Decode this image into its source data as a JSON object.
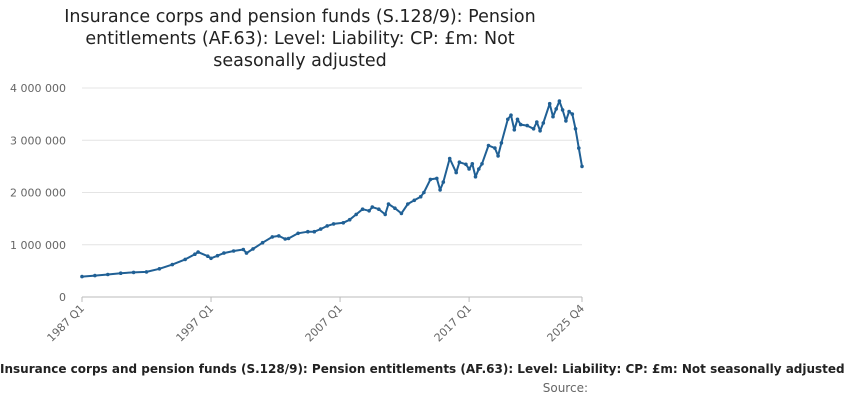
{
  "chart_data": {
    "type": "line",
    "title": "Insurance corps and pension funds (S.128/9): Pension entitlements (AF.63): Level: Liability: CP: £m: Not seasonally adjusted",
    "xlabel": "",
    "ylabel": "",
    "ylim": [
      0,
      4000000
    ],
    "y_ticks": [
      "0",
      "1 000 000",
      "2 000 000",
      "3 000 000",
      "4 000 000"
    ],
    "y_tick_values": [
      0,
      1000000,
      2000000,
      3000000,
      4000000
    ],
    "x_ticks": [
      "1987 Q1",
      "1997 Q1",
      "2007 Q1",
      "2017 Q1",
      "2025 Q4"
    ],
    "x_tick_values": [
      1987.0,
      1997.0,
      2007.0,
      2017.0,
      2025.75
    ],
    "grid": true,
    "series_color": "#206095",
    "series": [
      {
        "name": "Insurance corps and pension funds (S.128/9): Pension entitlements (AF.63): Level: Liability: CP: £m: Not seasonally adjusted",
        "points": [
          [
            1987.0,
            390000
          ],
          [
            1988.0,
            410000
          ],
          [
            1989.0,
            430000
          ],
          [
            1990.0,
            455000
          ],
          [
            1991.0,
            470000
          ],
          [
            1992.0,
            480000
          ],
          [
            1993.0,
            540000
          ],
          [
            1994.0,
            620000
          ],
          [
            1995.0,
            720000
          ],
          [
            1995.75,
            820000
          ],
          [
            1996.0,
            860000
          ],
          [
            1996.75,
            780000
          ],
          [
            1997.0,
            740000
          ],
          [
            1997.5,
            790000
          ],
          [
            1998.0,
            840000
          ],
          [
            1998.75,
            880000
          ],
          [
            1999.5,
            910000
          ],
          [
            1999.75,
            840000
          ],
          [
            2000.25,
            920000
          ],
          [
            2001.0,
            1040000
          ],
          [
            2001.75,
            1150000
          ],
          [
            2002.25,
            1170000
          ],
          [
            2002.75,
            1110000
          ],
          [
            2003.0,
            1120000
          ],
          [
            2003.75,
            1220000
          ],
          [
            2004.5,
            1250000
          ],
          [
            2005.0,
            1250000
          ],
          [
            2005.5,
            1300000
          ],
          [
            2006.0,
            1360000
          ],
          [
            2006.5,
            1400000
          ],
          [
            2007.25,
            1420000
          ],
          [
            2007.75,
            1480000
          ],
          [
            2008.25,
            1580000
          ],
          [
            2008.75,
            1680000
          ],
          [
            2009.25,
            1650000
          ],
          [
            2009.5,
            1720000
          ],
          [
            2010.0,
            1680000
          ],
          [
            2010.5,
            1580000
          ],
          [
            2010.75,
            1780000
          ],
          [
            2011.25,
            1700000
          ],
          [
            2011.75,
            1600000
          ],
          [
            2012.25,
            1780000
          ],
          [
            2012.75,
            1850000
          ],
          [
            2013.25,
            1920000
          ],
          [
            2013.5,
            2000000
          ],
          [
            2014.0,
            2250000
          ],
          [
            2014.5,
            2270000
          ],
          [
            2014.75,
            2050000
          ],
          [
            2015.0,
            2200000
          ],
          [
            2015.5,
            2650000
          ],
          [
            2016.0,
            2380000
          ],
          [
            2016.25,
            2580000
          ],
          [
            2016.75,
            2540000
          ],
          [
            2017.0,
            2450000
          ],
          [
            2017.25,
            2550000
          ],
          [
            2017.5,
            2300000
          ],
          [
            2017.75,
            2450000
          ],
          [
            2018.0,
            2550000
          ],
          [
            2018.5,
            2900000
          ],
          [
            2019.0,
            2850000
          ],
          [
            2019.25,
            2700000
          ],
          [
            2019.5,
            2950000
          ],
          [
            2020.0,
            3400000
          ],
          [
            2020.25,
            3480000
          ],
          [
            2020.5,
            3200000
          ],
          [
            2020.75,
            3400000
          ],
          [
            2021.0,
            3300000
          ],
          [
            2021.5,
            3280000
          ],
          [
            2022.0,
            3220000
          ],
          [
            2022.25,
            3350000
          ],
          [
            2022.5,
            3180000
          ],
          [
            2022.75,
            3330000
          ],
          [
            2023.25,
            3700000
          ],
          [
            2023.5,
            3450000
          ],
          [
            2023.75,
            3600000
          ],
          [
            2024.0,
            3750000
          ],
          [
            2024.25,
            3580000
          ],
          [
            2024.5,
            3370000
          ],
          [
            2024.75,
            3550000
          ],
          [
            2025.0,
            3500000
          ],
          [
            2025.25,
            3220000
          ],
          [
            2025.5,
            2850000
          ],
          [
            2025.75,
            2500000
          ]
        ]
      }
    ]
  },
  "footer": {
    "series_label": "Insurance corps and pension funds (S.128/9): Pension entitlements (AF.63): Level: Liability: CP: £m: Not seasonally adjusted",
    "source_label": "Source:"
  }
}
